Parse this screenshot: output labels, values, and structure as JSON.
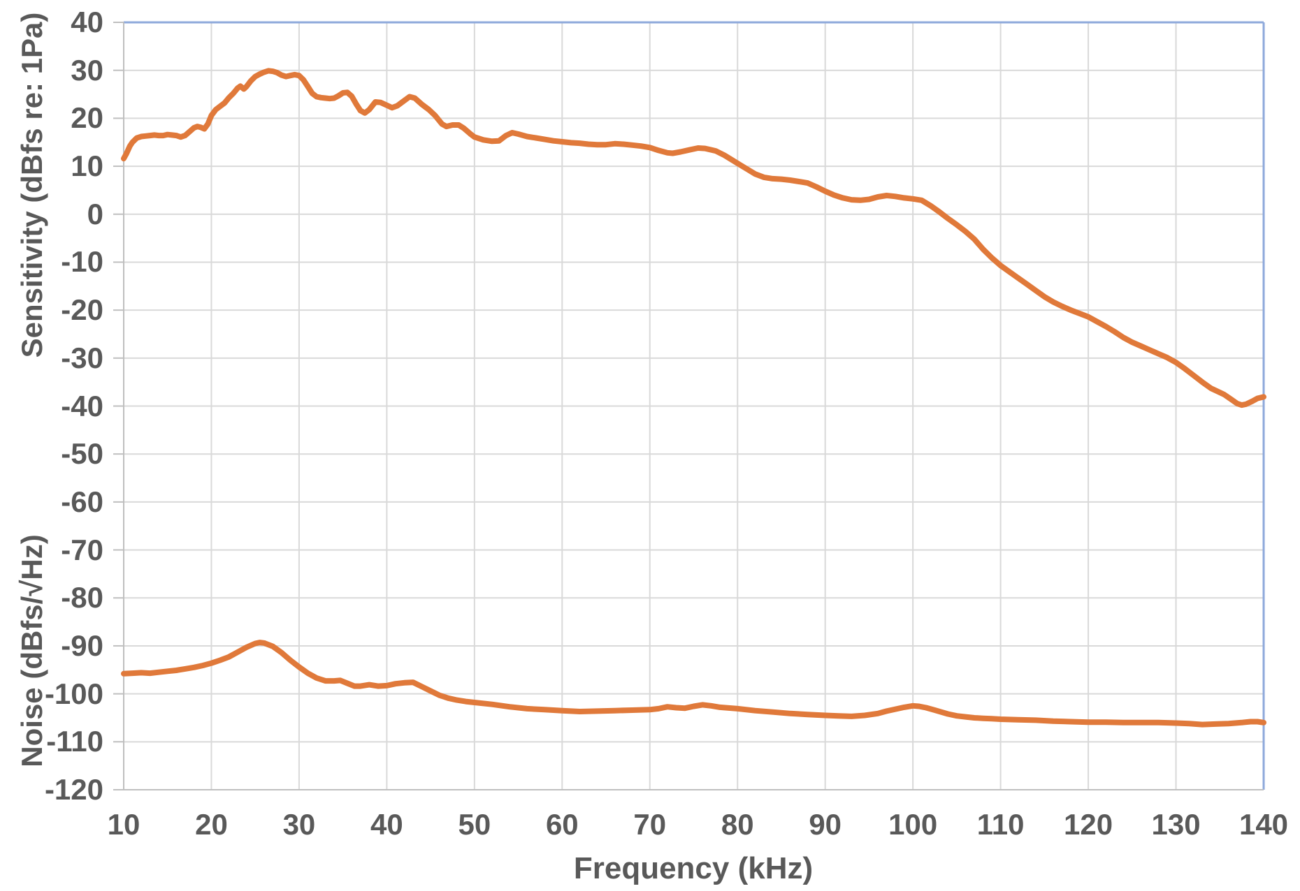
{
  "chart_data": {
    "type": "line",
    "title": "",
    "xlabel": "Frequency (kHz)",
    "ylabel_top": "Sensitivity (dBfs re: 1Pa)",
    "ylabel_bottom": "Noise (dBfs/√Hz)",
    "xlim": [
      10,
      140
    ],
    "ylim": [
      -120,
      40
    ],
    "x_ticks": [
      10,
      20,
      30,
      40,
      50,
      60,
      70,
      80,
      90,
      100,
      110,
      120,
      130,
      140
    ],
    "y_ticks": [
      40,
      30,
      20,
      10,
      0,
      -10,
      -20,
      -30,
      -40,
      -50,
      -60,
      -70,
      -80,
      -90,
      -100,
      -110,
      -120
    ],
    "grid": true,
    "legend": "none",
    "colors": {
      "line": "#E0793A",
      "gridline": "#D9D9D9",
      "axis": "#BFBFBF",
      "border": "#8EA9DB",
      "label": "#595959"
    },
    "series": [
      {
        "name": "Sensitivity (dBfs re: 1Pa)",
        "points": [
          [
            10,
            11.6
          ],
          [
            10.3,
            12.6
          ],
          [
            10.7,
            14.2
          ],
          [
            11,
            15.0
          ],
          [
            11.5,
            15.9
          ],
          [
            12,
            16.2
          ],
          [
            12.5,
            16.3
          ],
          [
            13,
            16.4
          ],
          [
            13.5,
            16.5
          ],
          [
            14,
            16.4
          ],
          [
            14.5,
            16.4
          ],
          [
            15,
            16.6
          ],
          [
            15.5,
            16.5
          ],
          [
            16,
            16.4
          ],
          [
            16.5,
            16.1
          ],
          [
            17,
            16.4
          ],
          [
            17.5,
            17.2
          ],
          [
            18,
            18.0
          ],
          [
            18.4,
            18.3
          ],
          [
            18.8,
            18.1
          ],
          [
            19.2,
            17.8
          ],
          [
            19.6,
            18.8
          ],
          [
            20,
            20.6
          ],
          [
            20.5,
            21.8
          ],
          [
            21,
            22.5
          ],
          [
            21.5,
            23.2
          ],
          [
            22,
            24.3
          ],
          [
            22.5,
            25.2
          ],
          [
            23,
            26.3
          ],
          [
            23.3,
            26.7
          ],
          [
            23.7,
            26.1
          ],
          [
            24,
            26.6
          ],
          [
            24.5,
            27.8
          ],
          [
            25,
            28.7
          ],
          [
            25.5,
            29.2
          ],
          [
            26,
            29.6
          ],
          [
            26.5,
            29.9
          ],
          [
            27,
            29.8
          ],
          [
            27.5,
            29.5
          ],
          [
            28,
            29.0
          ],
          [
            28.5,
            28.7
          ],
          [
            29,
            28.9
          ],
          [
            29.5,
            29.1
          ],
          [
            30,
            28.9
          ],
          [
            30.5,
            28.0
          ],
          [
            31,
            26.6
          ],
          [
            31.5,
            25.2
          ],
          [
            32,
            24.5
          ],
          [
            32.5,
            24.3
          ],
          [
            33,
            24.2
          ],
          [
            33.5,
            24.1
          ],
          [
            34,
            24.2
          ],
          [
            34.5,
            24.7
          ],
          [
            35,
            25.3
          ],
          [
            35.5,
            25.4
          ],
          [
            36,
            24.6
          ],
          [
            36.5,
            23.0
          ],
          [
            37,
            21.6
          ],
          [
            37.5,
            21.1
          ],
          [
            38,
            21.8
          ],
          [
            38.7,
            23.4
          ],
          [
            39.3,
            23.3
          ],
          [
            40,
            22.7
          ],
          [
            40.6,
            22.2
          ],
          [
            41.2,
            22.6
          ],
          [
            42,
            23.7
          ],
          [
            42.6,
            24.5
          ],
          [
            43.2,
            24.2
          ],
          [
            44,
            22.9
          ],
          [
            44.8,
            21.8
          ],
          [
            45.5,
            20.6
          ],
          [
            46.3,
            18.8
          ],
          [
            46.8,
            18.3
          ],
          [
            47.5,
            18.6
          ],
          [
            48.2,
            18.6
          ],
          [
            48.8,
            17.9
          ],
          [
            49.5,
            16.8
          ],
          [
            50,
            16.1
          ],
          [
            51,
            15.5
          ],
          [
            52,
            15.2
          ],
          [
            52.8,
            15.3
          ],
          [
            53.6,
            16.4
          ],
          [
            54.3,
            17.0
          ],
          [
            55,
            16.7
          ],
          [
            56,
            16.2
          ],
          [
            57,
            15.9
          ],
          [
            58,
            15.6
          ],
          [
            59,
            15.3
          ],
          [
            60,
            15.1
          ],
          [
            61,
            14.9
          ],
          [
            62,
            14.8
          ],
          [
            63,
            14.6
          ],
          [
            64,
            14.5
          ],
          [
            65,
            14.5
          ],
          [
            66,
            14.7
          ],
          [
            67,
            14.6
          ],
          [
            68,
            14.4
          ],
          [
            69,
            14.2
          ],
          [
            70,
            13.9
          ],
          [
            71,
            13.3
          ],
          [
            72,
            12.8
          ],
          [
            72.6,
            12.7
          ],
          [
            73.5,
            13.0
          ],
          [
            74.5,
            13.4
          ],
          [
            75.5,
            13.8
          ],
          [
            76.3,
            13.7
          ],
          [
            77.5,
            13.2
          ],
          [
            78.5,
            12.3
          ],
          [
            79.3,
            11.4
          ],
          [
            80,
            10.6
          ],
          [
            81,
            9.5
          ],
          [
            82,
            8.4
          ],
          [
            83,
            7.7
          ],
          [
            84,
            7.4
          ],
          [
            85,
            7.3
          ],
          [
            86,
            7.1
          ],
          [
            87,
            6.8
          ],
          [
            88,
            6.5
          ],
          [
            89,
            5.7
          ],
          [
            90,
            4.8
          ],
          [
            91,
            4.0
          ],
          [
            92,
            3.4
          ],
          [
            93,
            3.0
          ],
          [
            94,
            2.9
          ],
          [
            95,
            3.1
          ],
          [
            96,
            3.6
          ],
          [
            97,
            3.9
          ],
          [
            98,
            3.7
          ],
          [
            99,
            3.4
          ],
          [
            100,
            3.2
          ],
          [
            101,
            2.9
          ],
          [
            102,
            1.8
          ],
          [
            103,
            0.5
          ],
          [
            104,
            -0.9
          ],
          [
            105,
            -2.2
          ],
          [
            106,
            -3.6
          ],
          [
            107,
            -5.2
          ],
          [
            108,
            -7.3
          ],
          [
            109,
            -9.1
          ],
          [
            110,
            -10.7
          ],
          [
            111,
            -12.0
          ],
          [
            112,
            -13.3
          ],
          [
            113,
            -14.6
          ],
          [
            114,
            -15.9
          ],
          [
            115,
            -17.2
          ],
          [
            116,
            -18.3
          ],
          [
            117,
            -19.2
          ],
          [
            118,
            -20.0
          ],
          [
            119,
            -20.7
          ],
          [
            120,
            -21.4
          ],
          [
            121,
            -22.4
          ],
          [
            122,
            -23.4
          ],
          [
            123,
            -24.5
          ],
          [
            124,
            -25.7
          ],
          [
            125,
            -26.7
          ],
          [
            126,
            -27.5
          ],
          [
            127,
            -28.3
          ],
          [
            128,
            -29.1
          ],
          [
            129,
            -29.9
          ],
          [
            130,
            -30.9
          ],
          [
            131,
            -32.2
          ],
          [
            132,
            -33.6
          ],
          [
            133,
            -35.0
          ],
          [
            134,
            -36.3
          ],
          [
            134.8,
            -37.0
          ],
          [
            135.5,
            -37.6
          ],
          [
            136.3,
            -38.6
          ],
          [
            137,
            -39.5
          ],
          [
            137.5,
            -39.8
          ],
          [
            138,
            -39.6
          ],
          [
            138.7,
            -39.0
          ],
          [
            139.3,
            -38.4
          ],
          [
            140,
            -38.1
          ]
        ]
      },
      {
        "name": "Noise (dBfs/√Hz)",
        "points": [
          [
            10,
            -95.8
          ],
          [
            11,
            -95.7
          ],
          [
            12,
            -95.6
          ],
          [
            13,
            -95.7
          ],
          [
            14,
            -95.5
          ],
          [
            15,
            -95.3
          ],
          [
            16,
            -95.1
          ],
          [
            17,
            -94.8
          ],
          [
            18,
            -94.5
          ],
          [
            19,
            -94.1
          ],
          [
            20,
            -93.6
          ],
          [
            21,
            -93.0
          ],
          [
            22,
            -92.3
          ],
          [
            23,
            -91.3
          ],
          [
            24,
            -90.3
          ],
          [
            25,
            -89.5
          ],
          [
            25.5,
            -89.3
          ],
          [
            26,
            -89.4
          ],
          [
            27,
            -90.1
          ],
          [
            28,
            -91.4
          ],
          [
            29,
            -93.0
          ],
          [
            30,
            -94.4
          ],
          [
            31,
            -95.7
          ],
          [
            32,
            -96.7
          ],
          [
            33,
            -97.3
          ],
          [
            34,
            -97.3
          ],
          [
            34.7,
            -97.2
          ],
          [
            35.5,
            -97.8
          ],
          [
            36.3,
            -98.4
          ],
          [
            37,
            -98.4
          ],
          [
            38,
            -98.1
          ],
          [
            39,
            -98.4
          ],
          [
            40,
            -98.3
          ],
          [
            41,
            -97.9
          ],
          [
            42,
            -97.7
          ],
          [
            43,
            -97.6
          ],
          [
            44,
            -98.5
          ],
          [
            45,
            -99.4
          ],
          [
            46,
            -100.3
          ],
          [
            47,
            -100.9
          ],
          [
            48,
            -101.3
          ],
          [
            49,
            -101.6
          ],
          [
            50,
            -101.8
          ],
          [
            52,
            -102.2
          ],
          [
            54,
            -102.7
          ],
          [
            56,
            -103.1
          ],
          [
            58,
            -103.3
          ],
          [
            60,
            -103.5
          ],
          [
            62,
            -103.7
          ],
          [
            64,
            -103.6
          ],
          [
            66,
            -103.5
          ],
          [
            68,
            -103.4
          ],
          [
            70,
            -103.3
          ],
          [
            71,
            -103.1
          ],
          [
            72,
            -102.7
          ],
          [
            73,
            -102.9
          ],
          [
            74,
            -103.0
          ],
          [
            75,
            -102.6
          ],
          [
            76,
            -102.3
          ],
          [
            77,
            -102.5
          ],
          [
            78,
            -102.8
          ],
          [
            80,
            -103.1
          ],
          [
            82,
            -103.5
          ],
          [
            84,
            -103.8
          ],
          [
            86,
            -104.1
          ],
          [
            88,
            -104.3
          ],
          [
            90,
            -104.5
          ],
          [
            91.5,
            -104.6
          ],
          [
            93,
            -104.7
          ],
          [
            94.5,
            -104.5
          ],
          [
            96,
            -104.1
          ],
          [
            97,
            -103.6
          ],
          [
            98,
            -103.2
          ],
          [
            99,
            -102.8
          ],
          [
            100,
            -102.5
          ],
          [
            100.7,
            -102.6
          ],
          [
            101.5,
            -102.9
          ],
          [
            102.5,
            -103.4
          ],
          [
            104,
            -104.2
          ],
          [
            105,
            -104.6
          ],
          [
            106,
            -104.8
          ],
          [
            107,
            -105.0
          ],
          [
            108,
            -105.1
          ],
          [
            109,
            -105.2
          ],
          [
            110,
            -105.3
          ],
          [
            112,
            -105.4
          ],
          [
            114,
            -105.5
          ],
          [
            116,
            -105.7
          ],
          [
            118,
            -105.8
          ],
          [
            120,
            -105.9
          ],
          [
            122,
            -105.9
          ],
          [
            124,
            -106.0
          ],
          [
            126,
            -106.0
          ],
          [
            128,
            -106.0
          ],
          [
            130,
            -106.1
          ],
          [
            131.5,
            -106.2
          ],
          [
            133,
            -106.4
          ],
          [
            134.5,
            -106.3
          ],
          [
            136,
            -106.2
          ],
          [
            137.5,
            -106.0
          ],
          [
            138.5,
            -105.8
          ],
          [
            139.3,
            -105.8
          ],
          [
            140,
            -106.0
          ]
        ]
      }
    ]
  }
}
